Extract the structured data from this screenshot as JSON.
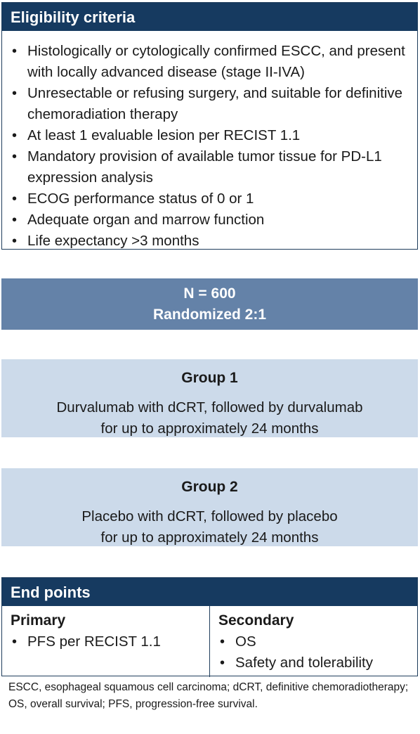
{
  "eligibility": {
    "title": "Eligibility criteria",
    "items": [
      "Histologically or cytologically confirmed ESCC, and present with locally advanced disease (stage II-IVA)",
      "Unresectable or refusing surgery, and suitable for definitive chemoradiation therapy",
      "At least 1 evaluable lesion per RECIST 1.1",
      "Mandatory provision of available tumor tissue for PD-L1 expression analysis",
      "ECOG performance status of 0 or 1",
      "Adequate organ and marrow function",
      "Life expectancy >3 months"
    ]
  },
  "randomization": {
    "n": "N = 600",
    "ratio": "Randomized 2:1"
  },
  "groups": [
    {
      "title": "Group 1",
      "line1": "Durvalumab with dCRT, followed by durvalumab",
      "line2": "for up to approximately 24 months"
    },
    {
      "title": "Group 2",
      "line1": "Placebo with dCRT, followed by placebo",
      "line2": "for up to approximately 24 months"
    }
  ],
  "endpoints": {
    "title": "End points",
    "primary": {
      "title": "Primary",
      "items": [
        "PFS per RECIST 1.1"
      ]
    },
    "secondary": {
      "title": "Secondary",
      "items": [
        "OS",
        "Safety and tolerability"
      ]
    }
  },
  "footnote": "ESCC, esophageal squamous cell carcinoma; dCRT, definitive chemoradiotherapy; OS, overall survival; PFS, progression-free survival."
}
